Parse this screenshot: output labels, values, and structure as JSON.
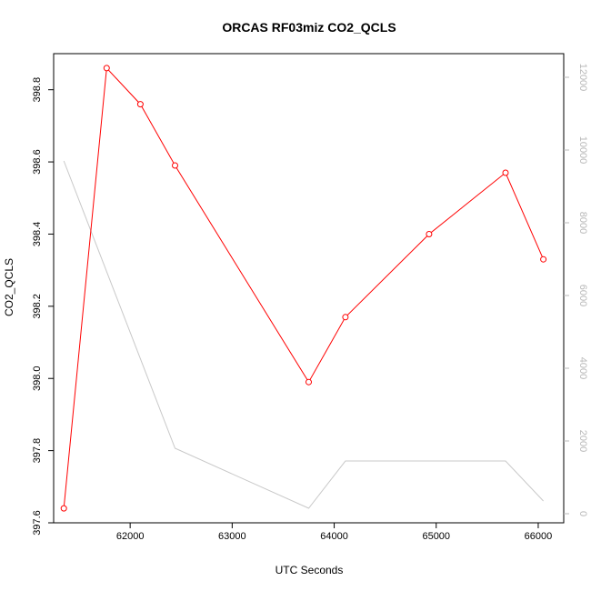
{
  "chart_data": {
    "type": "line",
    "title": "ORCAS RF03miz CO2_QCLS",
    "xlabel": "UTC Seconds",
    "ylabel": "CO2_QCLS",
    "xlim": [
      61250,
      66250
    ],
    "ylim": [
      397.6,
      398.9
    ],
    "y2lim": [
      -250,
      12650
    ],
    "x_ticks": [
      62000,
      63000,
      64000,
      65000,
      66000
    ],
    "x_tick_labels": [
      "62000",
      "63000",
      "64000",
      "65000",
      "66000"
    ],
    "y_ticks": [
      397.6,
      397.8,
      398.0,
      398.2,
      398.4,
      398.6,
      398.8
    ],
    "y_tick_labels": [
      "397.6",
      "397.8",
      "398.0",
      "398.2",
      "398.4",
      "398.6",
      "398.8"
    ],
    "y2_ticks": [
      0,
      2000,
      4000,
      6000,
      8000,
      10000,
      12000
    ],
    "y2_tick_labels": [
      "0",
      "2000",
      "4000",
      "6000",
      "8000",
      "10000",
      "12000"
    ],
    "grid": false,
    "colors": {
      "primary": "#ff0000",
      "secondary": "#c8c8c8",
      "axis": "#000000",
      "secondary_axis": "#b8b8b8"
    },
    "series": [
      {
        "axis": "left",
        "color": "#ff0000",
        "markers": true,
        "x": [
          61350,
          61770,
          62100,
          62440,
          63750,
          64110,
          64930,
          65680,
          66050
        ],
        "y": [
          397.64,
          398.86,
          398.76,
          398.59,
          397.99,
          398.17,
          398.4,
          398.57,
          398.33
        ]
      },
      {
        "axis": "right",
        "color": "#c8c8c8",
        "markers": false,
        "x": [
          61350,
          62440,
          63750,
          64110,
          65680,
          66050
        ],
        "y": [
          9700,
          1800,
          150,
          1450,
          1450,
          350
        ]
      }
    ]
  }
}
